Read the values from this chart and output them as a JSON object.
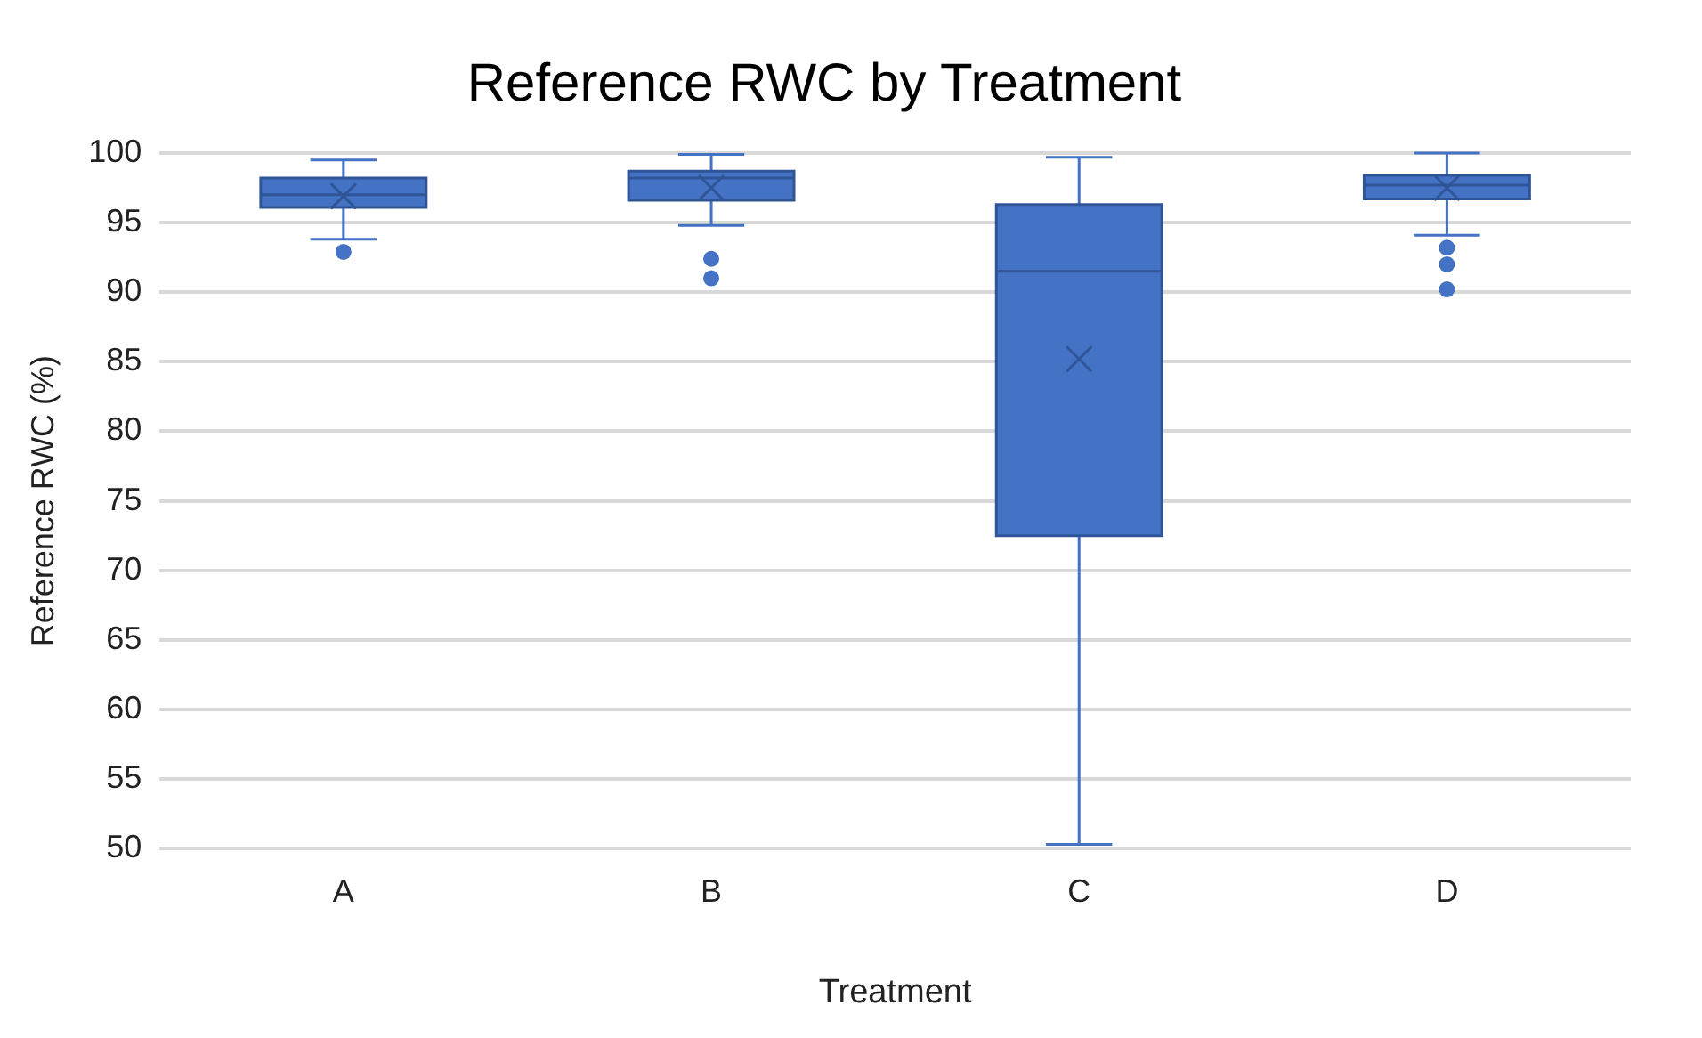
{
  "chart_data": {
    "type": "box",
    "title": "Reference RWC by Treatment",
    "xlabel": "Treatment",
    "ylabel": "Reference RWC (%)",
    "categories": [
      "A",
      "B",
      "C",
      "D"
    ],
    "color": "#4472c4",
    "boxes": [
      {
        "low": 93.8,
        "q1": 96.1,
        "median": 97.0,
        "q3": 98.2,
        "high": 99.5,
        "mean": 96.9,
        "outliers": [
          92.9
        ]
      },
      {
        "low": 94.8,
        "q1": 96.6,
        "median": 98.2,
        "q3": 98.7,
        "high": 99.9,
        "mean": 97.5,
        "outliers": [
          92.4,
          91.0
        ]
      },
      {
        "low": 50.3,
        "q1": 72.5,
        "median": 91.5,
        "q3": 96.3,
        "high": 99.7,
        "mean": 85.2
      },
      {
        "low": 94.1,
        "q1": 96.7,
        "median": 97.7,
        "q3": 98.4,
        "high": 100.0,
        "mean": 97.5,
        "outliers": [
          93.2,
          92.0,
          90.2
        ]
      }
    ],
    "ylim": [
      50,
      100
    ],
    "yticks": [
      50,
      55,
      60,
      65,
      70,
      75,
      80,
      85,
      90,
      95,
      100
    ],
    "grid": "y",
    "legend": false
  }
}
